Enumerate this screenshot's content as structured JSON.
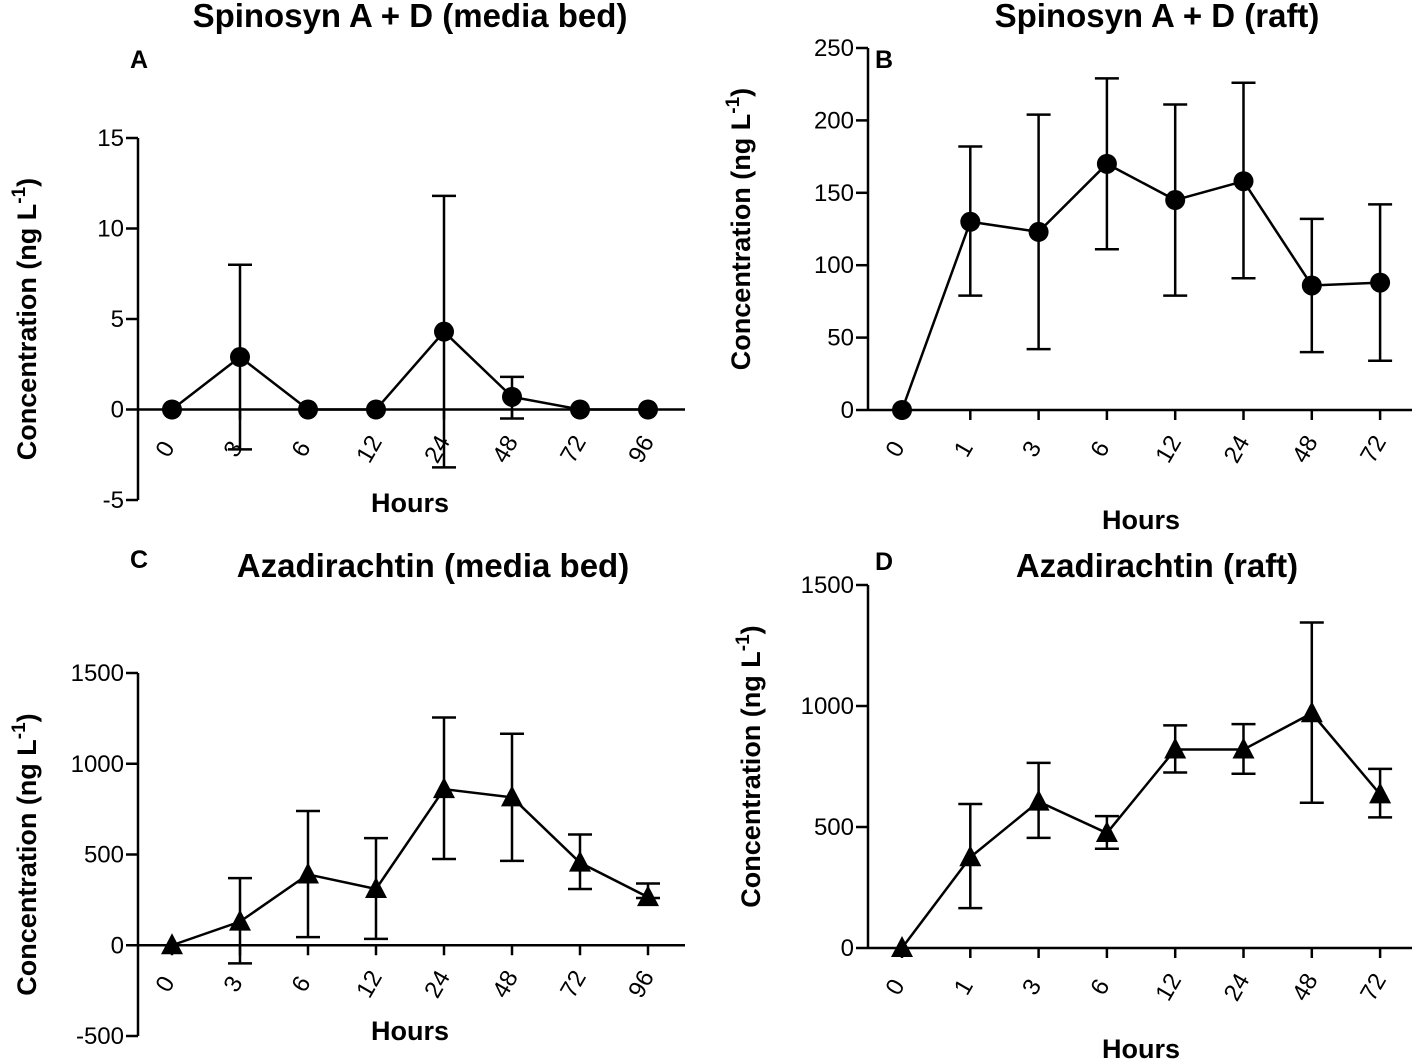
{
  "chart_data": [
    {
      "panel": "A",
      "type": "line",
      "marker": "circle",
      "title": "Spinosyn A + D (media bed)",
      "xlabel": "Hours",
      "ylabel": "Concentration (ng  L",
      "ylabel_sup": "-1",
      "ylabel_close": ")",
      "categories": [
        "0",
        "3",
        "6",
        "12",
        "24",
        "48",
        "72",
        "96"
      ],
      "values": [
        0,
        2.9,
        0,
        0,
        4.3,
        0.7,
        0,
        0
      ],
      "error_upper": [
        0,
        8.0,
        0,
        0,
        11.8,
        1.8,
        0,
        0
      ],
      "error_lower": [
        0,
        -2.2,
        0,
        0,
        -3.2,
        -0.5,
        0,
        0
      ],
      "ylim": [
        -5,
        15
      ],
      "yticks": [
        -5,
        0,
        5,
        10,
        15
      ],
      "ytick_labels": [
        "-5",
        "0",
        "5",
        "10",
        "15"
      ]
    },
    {
      "panel": "B",
      "type": "line",
      "marker": "circle",
      "title": "Spinosyn A + D (raft)",
      "xlabel": "Hours",
      "ylabel": "Concentration (ng  L",
      "ylabel_sup": "-1",
      "ylabel_close": ")",
      "categories": [
        "0",
        "1",
        "3",
        "6",
        "12",
        "24",
        "48",
        "72"
      ],
      "values": [
        0,
        130,
        123,
        170,
        145,
        158,
        86,
        88
      ],
      "error_upper": [
        0,
        182,
        204,
        229,
        211,
        226,
        132,
        142
      ],
      "error_lower": [
        0,
        79,
        42,
        111,
        79,
        91,
        40,
        34
      ],
      "ylim": [
        0,
        250
      ],
      "yticks": [
        0,
        50,
        100,
        150,
        200,
        250
      ],
      "ytick_labels": [
        "0",
        "50",
        "100",
        "150",
        "200",
        "250"
      ]
    },
    {
      "panel": "C",
      "type": "line",
      "marker": "triangle",
      "title": "Azadirachtin (media bed)",
      "xlabel": "Hours",
      "ylabel": "Concentration (ng  L",
      "ylabel_sup": "-1",
      "ylabel_close": ")",
      "categories": [
        "0",
        "3",
        "6",
        "12",
        "24",
        "48",
        "72",
        "96"
      ],
      "values": [
        0,
        130,
        390,
        310,
        860,
        815,
        455,
        265
      ],
      "error_upper": [
        0,
        370,
        740,
        590,
        1255,
        1165,
        610,
        340
      ],
      "error_lower": [
        0,
        -100,
        45,
        35,
        475,
        465,
        310,
        260
      ],
      "ylim": [
        -500,
        1500
      ],
      "yticks": [
        -500,
        0,
        500,
        1000,
        1500
      ],
      "ytick_labels": [
        "-500",
        "0",
        "500",
        "1000",
        "1500"
      ]
    },
    {
      "panel": "D",
      "type": "line",
      "marker": "triangle",
      "title": "Azadirachtin (raft)",
      "xlabel": "Hours",
      "ylabel": "Concentration (ng  L",
      "ylabel_sup": "-1",
      "ylabel_close": ")",
      "categories": [
        "0",
        "1",
        "3",
        "6",
        "12",
        "24",
        "48",
        "72"
      ],
      "values": [
        0,
        375,
        605,
        475,
        820,
        820,
        970,
        635
      ],
      "error_upper": [
        0,
        595,
        765,
        545,
        920,
        925,
        1345,
        740
      ],
      "error_lower": [
        0,
        165,
        455,
        410,
        725,
        720,
        600,
        540
      ],
      "ylim": [
        0,
        1500
      ],
      "yticks": [
        0,
        500,
        1000,
        1500
      ],
      "ytick_labels": [
        "0",
        "500",
        "1000",
        "1500"
      ]
    }
  ]
}
